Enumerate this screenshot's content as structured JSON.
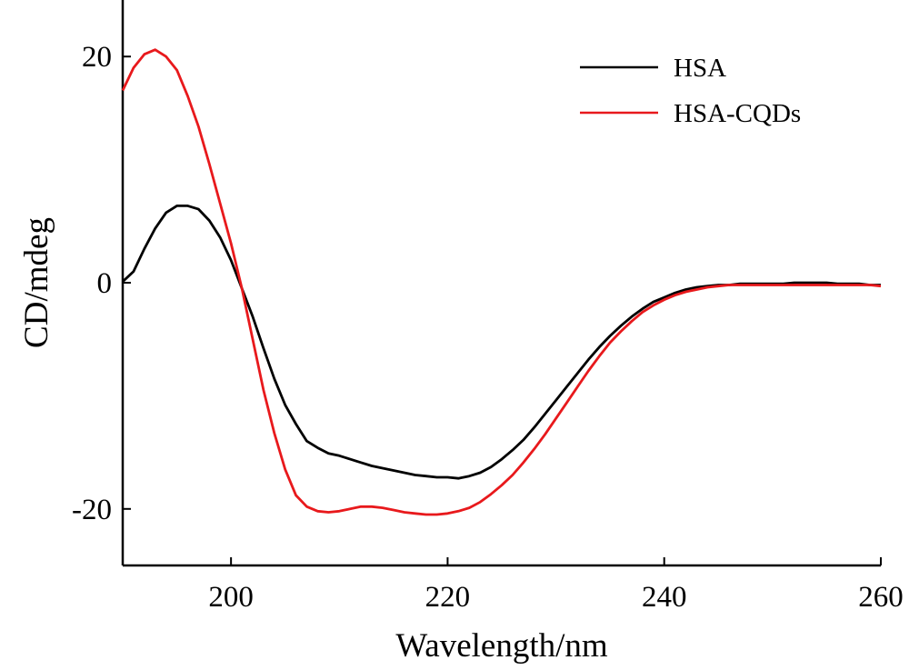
{
  "chart_data": {
    "type": "line",
    "title": "",
    "xlabel": "Wavelength/nm",
    "ylabel": "CD/mdeg",
    "xlim": [
      190,
      260
    ],
    "ylim": [
      -25,
      25
    ],
    "xticks": [
      200,
      220,
      240,
      260
    ],
    "yticks": [
      20,
      0,
      -20
    ],
    "xtick_labels": [
      "200",
      "220",
      "240",
      "260"
    ],
    "ytick_labels": [
      "20",
      "0",
      "-20"
    ],
    "grid": false,
    "legend_position": "top-right",
    "series": [
      {
        "name": "HSA",
        "color": "#000000",
        "x": [
          190,
          191,
          192,
          193,
          194,
          195,
          196,
          197,
          198,
          199,
          200,
          201,
          202,
          203,
          204,
          205,
          206,
          207,
          208,
          209,
          210,
          211,
          212,
          213,
          214,
          215,
          216,
          217,
          218,
          219,
          220,
          221,
          222,
          223,
          224,
          225,
          226,
          227,
          228,
          229,
          230,
          231,
          232,
          233,
          234,
          235,
          236,
          237,
          238,
          239,
          240,
          241,
          242,
          243,
          244,
          245,
          246,
          247,
          248,
          249,
          250,
          251,
          252,
          253,
          254,
          255,
          256,
          257,
          258,
          259,
          260
        ],
        "y": [
          0.1,
          1.0,
          3.0,
          4.8,
          6.2,
          6.8,
          6.8,
          6.5,
          5.5,
          4.0,
          2.0,
          -0.5,
          -3.0,
          -5.8,
          -8.5,
          -10.8,
          -12.5,
          -14.0,
          -14.6,
          -15.1,
          -15.3,
          -15.6,
          -15.9,
          -16.2,
          -16.4,
          -16.6,
          -16.8,
          -17.0,
          -17.1,
          -17.2,
          -17.2,
          -17.3,
          -17.1,
          -16.8,
          -16.3,
          -15.6,
          -14.8,
          -13.9,
          -12.8,
          -11.6,
          -10.4,
          -9.2,
          -8.0,
          -6.8,
          -5.7,
          -4.7,
          -3.8,
          -3.0,
          -2.3,
          -1.7,
          -1.3,
          -0.9,
          -0.6,
          -0.4,
          -0.3,
          -0.2,
          -0.2,
          -0.1,
          -0.1,
          -0.1,
          -0.1,
          -0.1,
          0.0,
          0.0,
          0.0,
          0.0,
          -0.1,
          -0.1,
          -0.1,
          -0.2,
          -0.2
        ]
      },
      {
        "name": "HSA-CQDs",
        "color": "#e8191c",
        "x": [
          190,
          191,
          192,
          193,
          194,
          195,
          196,
          197,
          198,
          199,
          200,
          201,
          202,
          203,
          204,
          205,
          206,
          207,
          208,
          209,
          210,
          211,
          212,
          213,
          214,
          215,
          216,
          217,
          218,
          219,
          220,
          221,
          222,
          223,
          224,
          225,
          226,
          227,
          228,
          229,
          230,
          231,
          232,
          233,
          234,
          235,
          236,
          237,
          238,
          239,
          240,
          241,
          242,
          243,
          244,
          245,
          246,
          247,
          248,
          249,
          250,
          251,
          252,
          253,
          254,
          255,
          256,
          257,
          258,
          259,
          260
        ],
        "y": [
          17.0,
          19.0,
          20.2,
          20.6,
          20.0,
          18.8,
          16.5,
          13.8,
          10.5,
          7.0,
          3.5,
          -0.5,
          -5.0,
          -9.5,
          -13.3,
          -16.5,
          -18.8,
          -19.8,
          -20.2,
          -20.3,
          -20.2,
          -20.0,
          -19.8,
          -19.8,
          -19.9,
          -20.1,
          -20.3,
          -20.4,
          -20.5,
          -20.5,
          -20.4,
          -20.2,
          -19.9,
          -19.4,
          -18.7,
          -17.9,
          -17.0,
          -15.9,
          -14.7,
          -13.4,
          -12.0,
          -10.6,
          -9.2,
          -7.8,
          -6.5,
          -5.3,
          -4.3,
          -3.4,
          -2.6,
          -2.0,
          -1.5,
          -1.1,
          -0.8,
          -0.6,
          -0.4,
          -0.3,
          -0.2,
          -0.2,
          -0.2,
          -0.2,
          -0.2,
          -0.2,
          -0.2,
          -0.2,
          -0.2,
          -0.2,
          -0.2,
          -0.2,
          -0.2,
          -0.2,
          -0.3
        ]
      }
    ]
  }
}
